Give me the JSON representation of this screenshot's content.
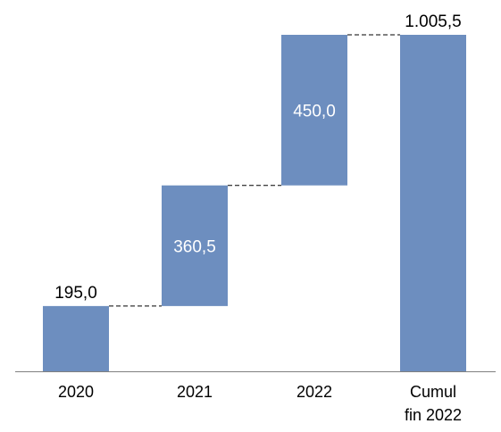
{
  "chart_data": {
    "type": "bar",
    "subtype": "waterfall",
    "categories": [
      "2020",
      "2021",
      "2022",
      "Cumul fin 2022"
    ],
    "category_lines": [
      [
        "2020"
      ],
      [
        "2021"
      ],
      [
        "2022"
      ],
      [
        "Cumul",
        "fin 2022"
      ]
    ],
    "values": [
      195.0,
      360.5,
      450.0,
      1005.5
    ],
    "value_labels": [
      "195,0",
      "360,5",
      "450,0",
      "1.005,5"
    ],
    "kinds": [
      "increment",
      "increment",
      "increment",
      "total"
    ],
    "ylim": [
      0,
      1005.5
    ],
    "grid": false,
    "legend": "none",
    "title": "",
    "xlabel": "",
    "ylabel": ""
  },
  "colors": {
    "bar": "#6d8ebf",
    "label_inside": "#ffffff",
    "label_outside": "#000000",
    "connector": "#000000",
    "axis": "#808080"
  }
}
